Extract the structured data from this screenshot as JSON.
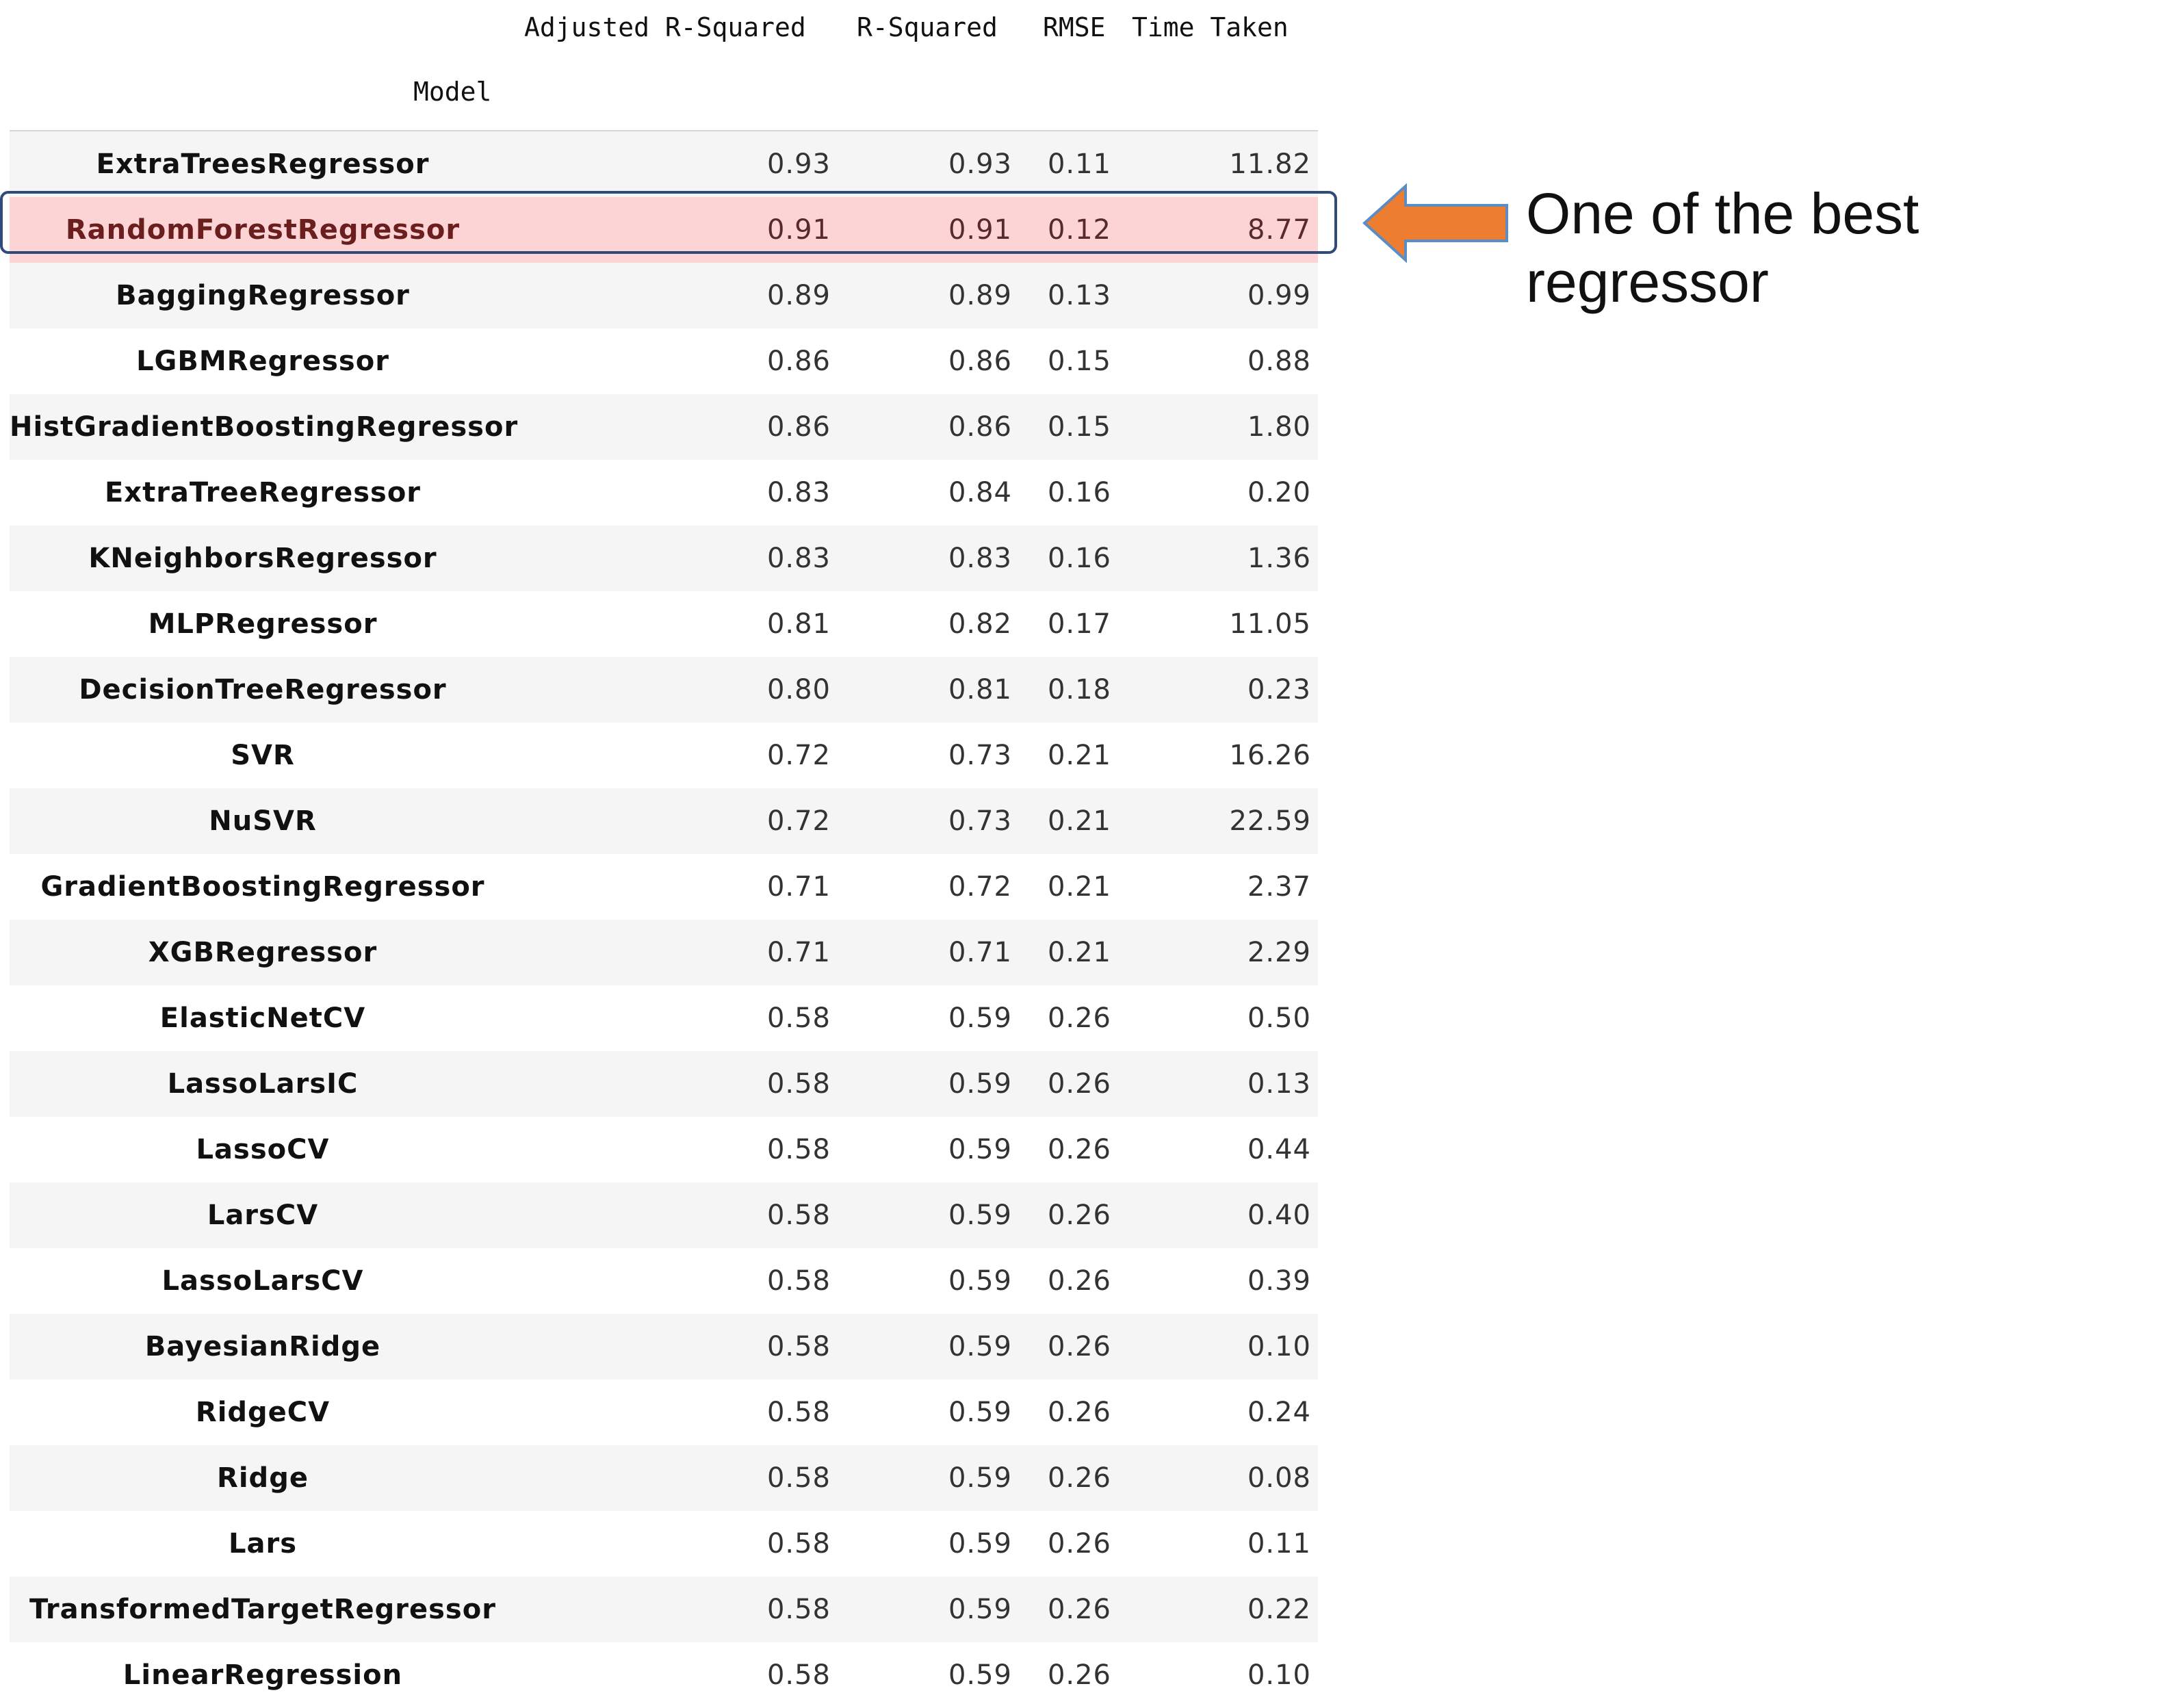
{
  "table": {
    "headers": {
      "adjusted_r_squared": "Adjusted R-Squared",
      "r_squared": "R-Squared",
      "rmse": "RMSE",
      "time_taken": "Time Taken",
      "model": "Model"
    },
    "rows": [
      {
        "model": "ExtraTreesRegressor",
        "adj_r2": "0.93",
        "r2": "0.93",
        "rmse": "0.11",
        "time": "11.82"
      },
      {
        "model": "RandomForestRegressor",
        "adj_r2": "0.91",
        "r2": "0.91",
        "rmse": "0.12",
        "time": "8.77"
      },
      {
        "model": "BaggingRegressor",
        "adj_r2": "0.89",
        "r2": "0.89",
        "rmse": "0.13",
        "time": "0.99"
      },
      {
        "model": "LGBMRegressor",
        "adj_r2": "0.86",
        "r2": "0.86",
        "rmse": "0.15",
        "time": "0.88"
      },
      {
        "model": "HistGradientBoostingRegressor",
        "adj_r2": "0.86",
        "r2": "0.86",
        "rmse": "0.15",
        "time": "1.80"
      },
      {
        "model": "ExtraTreeRegressor",
        "adj_r2": "0.83",
        "r2": "0.84",
        "rmse": "0.16",
        "time": "0.20"
      },
      {
        "model": "KNeighborsRegressor",
        "adj_r2": "0.83",
        "r2": "0.83",
        "rmse": "0.16",
        "time": "1.36"
      },
      {
        "model": "MLPRegressor",
        "adj_r2": "0.81",
        "r2": "0.82",
        "rmse": "0.17",
        "time": "11.05"
      },
      {
        "model": "DecisionTreeRegressor",
        "adj_r2": "0.80",
        "r2": "0.81",
        "rmse": "0.18",
        "time": "0.23"
      },
      {
        "model": "SVR",
        "adj_r2": "0.72",
        "r2": "0.73",
        "rmse": "0.21",
        "time": "16.26"
      },
      {
        "model": "NuSVR",
        "adj_r2": "0.72",
        "r2": "0.73",
        "rmse": "0.21",
        "time": "22.59"
      },
      {
        "model": "GradientBoostingRegressor",
        "adj_r2": "0.71",
        "r2": "0.72",
        "rmse": "0.21",
        "time": "2.37"
      },
      {
        "model": "XGBRegressor",
        "adj_r2": "0.71",
        "r2": "0.71",
        "rmse": "0.21",
        "time": "2.29"
      },
      {
        "model": "ElasticNetCV",
        "adj_r2": "0.58",
        "r2": "0.59",
        "rmse": "0.26",
        "time": "0.50"
      },
      {
        "model": "LassoLarsIC",
        "adj_r2": "0.58",
        "r2": "0.59",
        "rmse": "0.26",
        "time": "0.13"
      },
      {
        "model": "LassoCV",
        "adj_r2": "0.58",
        "r2": "0.59",
        "rmse": "0.26",
        "time": "0.44"
      },
      {
        "model": "LarsCV",
        "adj_r2": "0.58",
        "r2": "0.59",
        "rmse": "0.26",
        "time": "0.40"
      },
      {
        "model": "LassoLarsCV",
        "adj_r2": "0.58",
        "r2": "0.59",
        "rmse": "0.26",
        "time": "0.39"
      },
      {
        "model": "BayesianRidge",
        "adj_r2": "0.58",
        "r2": "0.59",
        "rmse": "0.26",
        "time": "0.10"
      },
      {
        "model": "RidgeCV",
        "adj_r2": "0.58",
        "r2": "0.59",
        "rmse": "0.26",
        "time": "0.24"
      },
      {
        "model": "Ridge",
        "adj_r2": "0.58",
        "r2": "0.59",
        "rmse": "0.26",
        "time": "0.08"
      },
      {
        "model": "Lars",
        "adj_r2": "0.58",
        "r2": "0.59",
        "rmse": "0.26",
        "time": "0.11"
      },
      {
        "model": "TransformedTargetRegressor",
        "adj_r2": "0.58",
        "r2": "0.59",
        "rmse": "0.26",
        "time": "0.22"
      },
      {
        "model": "LinearRegression",
        "adj_r2": "0.58",
        "r2": "0.59",
        "rmse": "0.26",
        "time": "0.10"
      }
    ],
    "highlighted_row": 1
  },
  "callout": {
    "line1": "One of the best",
    "line2": "regressor"
  },
  "colors": {
    "highlight_fill": "#fdd4d6",
    "highlight_border": "#2f4b7c",
    "arrow_fill": "#ed7d31",
    "arrow_stroke": "#5b8cc4",
    "stripe": "#f5f5f5"
  },
  "icons": {
    "arrow": "left-arrow-icon"
  }
}
